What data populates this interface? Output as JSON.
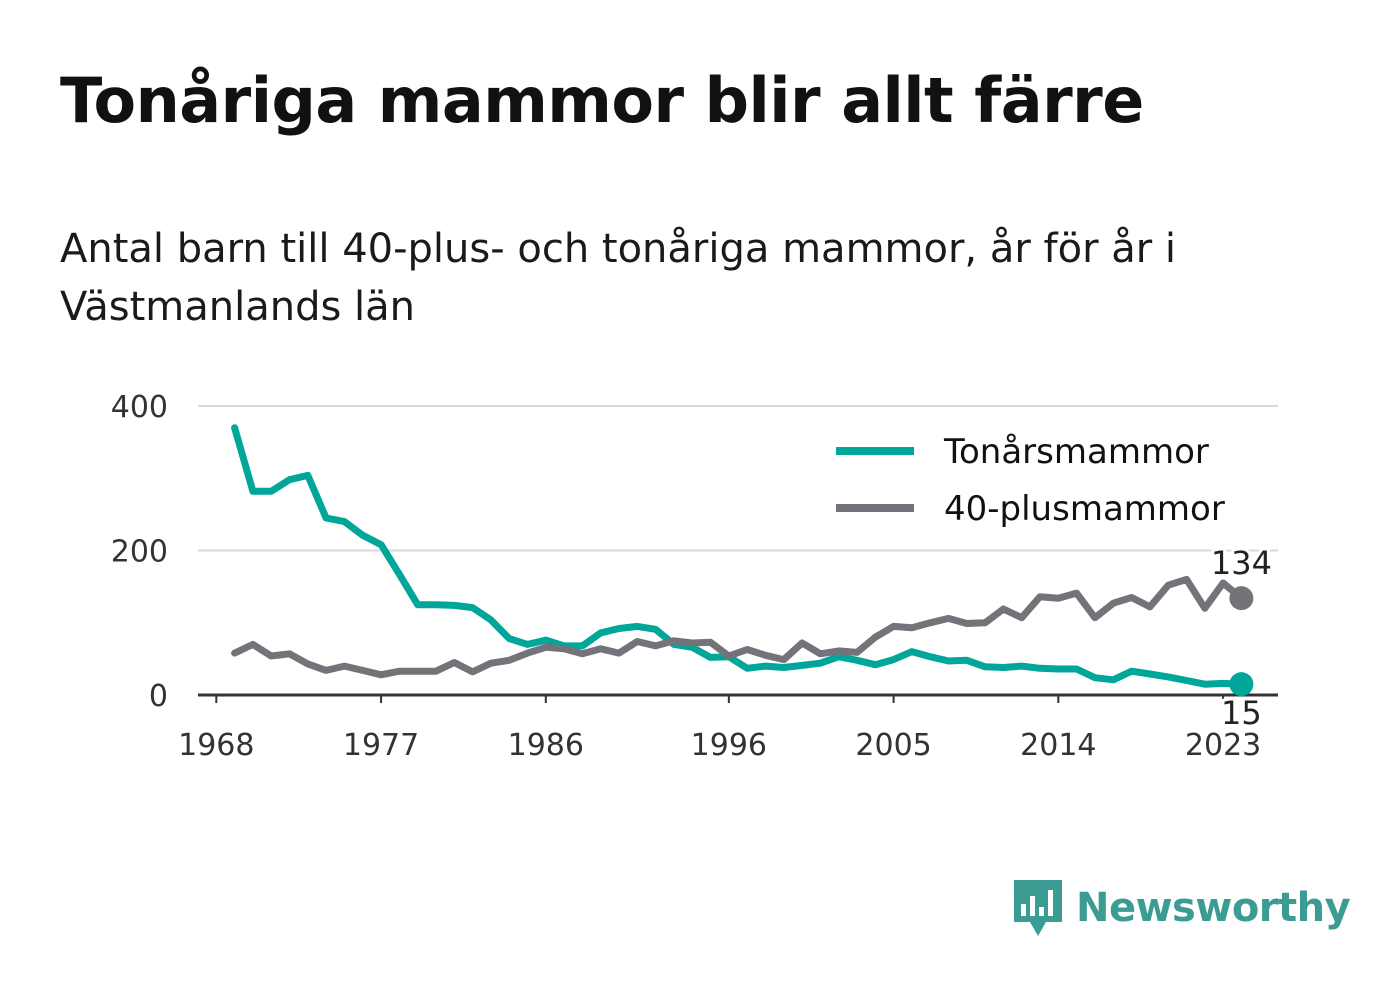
{
  "title": "Tonåriga mammor blir allt färre",
  "subtitle": "Antal barn till 40-plus- och tonåriga mammor, år för år i Västmanlands län",
  "brand": "Newsworthy",
  "colors": {
    "teens": "#00a699",
    "forty_plus": "#74737a",
    "grid": "#d9d9d9",
    "axis": "#333333"
  },
  "chart_data": {
    "type": "line",
    "title": "Tonåriga mammor blir allt färre",
    "subtitle": "Antal barn till 40-plus- och tonåriga mammor, år för år i Västmanlands län",
    "xlabel": "",
    "ylabel": "",
    "x_ticks": [
      1968,
      1977,
      1986,
      1996,
      2005,
      2014,
      2023
    ],
    "xlim": [
      1967,
      2026
    ],
    "ylim": [
      0,
      400
    ],
    "y_ticks": [
      0,
      200,
      400
    ],
    "grid": "horizontal",
    "legend_position": "top-right",
    "x": [
      1969,
      1970,
      1971,
      1972,
      1973,
      1974,
      1975,
      1976,
      1977,
      1978,
      1979,
      1980,
      1981,
      1982,
      1983,
      1984,
      1985,
      1986,
      1987,
      1988,
      1989,
      1990,
      1991,
      1992,
      1993,
      1994,
      1995,
      1996,
      1997,
      1998,
      1999,
      2000,
      2001,
      2002,
      2003,
      2004,
      2005,
      2006,
      2007,
      2008,
      2009,
      2010,
      2011,
      2012,
      2013,
      2014,
      2015,
      2016,
      2017,
      2018,
      2019,
      2020,
      2021,
      2022,
      2023,
      2024
    ],
    "series": [
      {
        "name": "Tonårsmammor",
        "color": "#00a699",
        "values": [
          370,
          282,
          282,
          298,
          304,
          245,
          240,
          221,
          208,
          167,
          125,
          125,
          124,
          121,
          104,
          78,
          70,
          76,
          68,
          68,
          86,
          92,
          95,
          91,
          70,
          66,
          52,
          53,
          37,
          40,
          38,
          41,
          44,
          53,
          48,
          42,
          49,
          60,
          53,
          47,
          48,
          39,
          38,
          40,
          37,
          36,
          36,
          24,
          21,
          33,
          29,
          25,
          20,
          15,
          16,
          15
        ],
        "end_label": "15"
      },
      {
        "name": "40-plusmammor",
        "color": "#74737a",
        "values": [
          58,
          70,
          54,
          57,
          43,
          34,
          40,
          34,
          28,
          33,
          33,
          33,
          45,
          32,
          44,
          48,
          58,
          66,
          64,
          57,
          64,
          58,
          74,
          68,
          75,
          72,
          73,
          54,
          63,
          55,
          49,
          72,
          57,
          61,
          59,
          80,
          95,
          93,
          100,
          106,
          99,
          100,
          119,
          107,
          136,
          134,
          141,
          107,
          127,
          135,
          122,
          152,
          160,
          120,
          155,
          134
        ],
        "end_label": "134"
      }
    ]
  }
}
